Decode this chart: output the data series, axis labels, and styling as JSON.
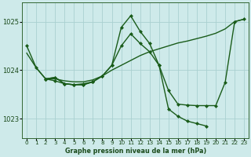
{
  "title": "Graphe pression niveau de la mer (hPa)",
  "background_color": "#ceeaea",
  "grid_color": "#aad0d0",
  "line_color": "#1a5c1a",
  "ylim": [
    1022.6,
    1025.4
  ],
  "yticks": [
    1023,
    1024,
    1025
  ],
  "xlim": [
    -0.5,
    23.5
  ],
  "xticks": [
    0,
    1,
    2,
    3,
    4,
    5,
    6,
    7,
    8,
    9,
    10,
    11,
    12,
    13,
    14,
    15,
    16,
    17,
    18,
    19,
    20,
    21,
    22,
    23
  ],
  "s1_x": [
    0,
    1,
    2,
    3,
    4,
    5,
    6,
    7,
    8,
    9,
    10,
    11,
    12,
    13,
    14,
    15,
    16,
    17,
    18,
    19,
    20,
    21,
    22,
    23
  ],
  "s1_y": [
    1024.35,
    1024.05,
    1023.82,
    1023.82,
    1023.78,
    1023.76,
    1023.76,
    1023.8,
    1023.88,
    1024.0,
    1024.1,
    1024.2,
    1024.3,
    1024.38,
    1024.44,
    1024.5,
    1024.56,
    1024.6,
    1024.65,
    1024.7,
    1024.76,
    1024.85,
    1025.0,
    1025.05
  ],
  "s2_x": [
    0,
    1,
    2,
    3,
    4,
    5,
    6,
    7,
    8,
    9,
    10,
    11,
    12,
    13,
    14,
    15,
    16,
    17,
    18,
    19,
    20,
    21,
    22,
    23
  ],
  "s2_y": [
    1024.5,
    1024.05,
    1023.82,
    1023.85,
    1023.72,
    1023.7,
    1023.7,
    1023.76,
    1023.88,
    1024.1,
    1024.5,
    1024.75,
    1024.55,
    1024.38,
    1024.1,
    1023.58,
    1023.3,
    1023.28,
    1023.27,
    1023.27,
    1023.27,
    1023.75,
    1025.0,
    1025.05
  ],
  "s3_x": [
    2,
    3,
    4,
    5,
    6,
    7,
    8,
    9,
    10,
    11,
    12,
    13,
    14,
    15,
    16,
    17,
    18,
    19
  ],
  "s3_y": [
    1023.82,
    1023.85,
    1023.72,
    1023.7,
    1023.7,
    1023.76,
    1023.88,
    1024.1,
    1024.88,
    1025.12,
    1024.8,
    1024.55,
    1024.1,
    1023.2,
    1023.05,
    1022.95,
    1022.9,
    1022.85
  ],
  "s4_x": [
    2,
    3,
    4,
    5,
    6,
    7
  ],
  "s4_y": [
    1023.82,
    1023.78,
    1023.72,
    1023.7,
    1023.72,
    1023.76
  ]
}
